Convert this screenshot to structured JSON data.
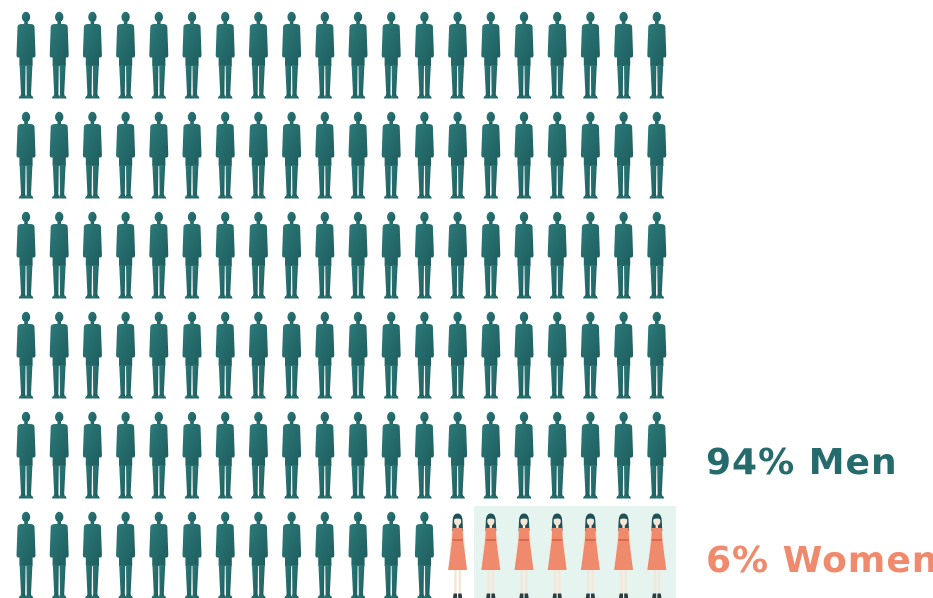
{
  "chart_data": {
    "type": "pictograph",
    "grid": {
      "rows": 6,
      "columns": 20
    },
    "series": [
      {
        "name": "Men",
        "percent": 94,
        "label": "94% Men",
        "color": "#256b6b",
        "icon": "man-icon"
      },
      {
        "name": "Women",
        "percent": 6,
        "label": "6% Women",
        "color": "#f08a6c",
        "icon": "woman-icon"
      }
    ],
    "highlight_bg": "#e6f4ef",
    "total_icons": 120
  }
}
